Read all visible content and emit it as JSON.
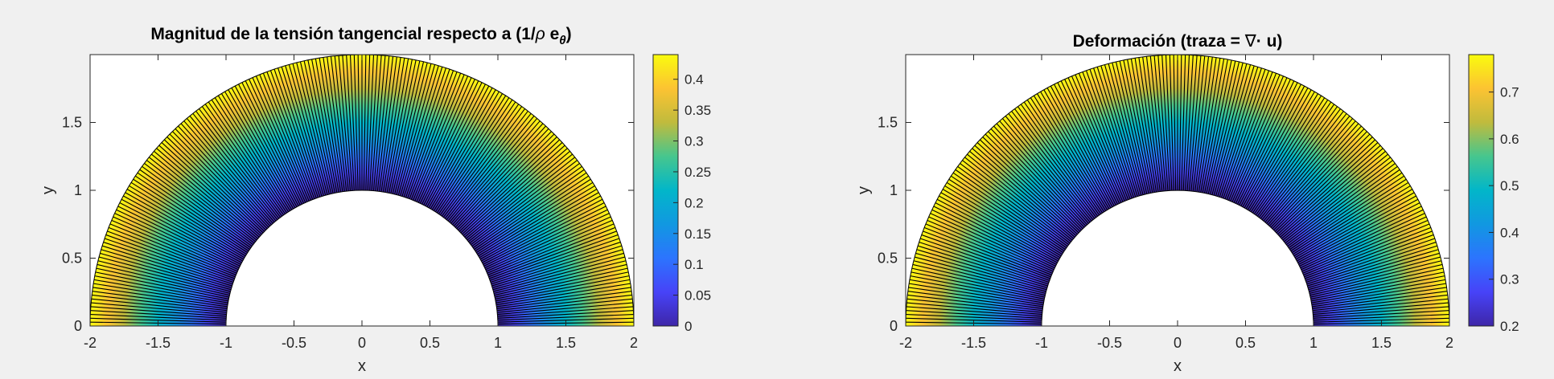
{
  "figure": {
    "background": "#f0f0f0"
  },
  "chart_data": [
    {
      "type": "heatmap",
      "plot_kind": "filled half-annulus surface with radial mesh lines",
      "title_parts": {
        "main": "Magnitud de la tensión tangencial respecto a (1/",
        "rho": "ρ",
        "space": " e",
        "sub": "θ",
        "close": ")"
      },
      "xlabel": "x",
      "ylabel": "y",
      "xlim": [
        -2,
        2
      ],
      "ylim": [
        0,
        2
      ],
      "xticks": [
        "-2",
        "-1.5",
        "-1",
        "-0.5",
        "0",
        "0.5",
        "1",
        "1.5",
        "2"
      ],
      "yticks": [
        "0",
        "0.5",
        "1",
        "1.5"
      ],
      "domain": {
        "inner_radius": 1,
        "outer_radius": 2,
        "theta_range_deg": [
          0,
          180
        ]
      },
      "field": {
        "min_at": "inner radius",
        "max_at": "outer radius",
        "value_min": 0,
        "value_max": 0.44
      },
      "colormap": "parula",
      "colorbar": {
        "ticks": [
          "0",
          "0.05",
          "0.1",
          "0.15",
          "0.2",
          "0.25",
          "0.3",
          "0.35",
          "0.4"
        ],
        "range": [
          0,
          0.44
        ]
      }
    },
    {
      "type": "heatmap",
      "plot_kind": "filled half-annulus surface with radial mesh lines",
      "title_parts": {
        "main": "Deformación (traza = ",
        "nabla": "∇",
        "dot": "· u)"
      },
      "xlabel": "x",
      "ylabel": "y",
      "xlim": [
        -2,
        2
      ],
      "ylim": [
        0,
        2
      ],
      "xticks": [
        "-2",
        "-1.5",
        "-1",
        "-0.5",
        "0",
        "0.5",
        "1",
        "1.5",
        "2"
      ],
      "yticks": [
        "0",
        "0.5",
        "1",
        "1.5"
      ],
      "domain": {
        "inner_radius": 1,
        "outer_radius": 2,
        "theta_range_deg": [
          0,
          180
        ]
      },
      "field": {
        "min_at": "inner radius",
        "max_at": "outer radius",
        "value_min": 0.2,
        "value_max": 0.78
      },
      "colormap": "parula",
      "colorbar": {
        "ticks": [
          "0.2",
          "0.3",
          "0.4",
          "0.5",
          "0.6",
          "0.7"
        ],
        "range": [
          0.2,
          0.78
        ]
      }
    }
  ]
}
